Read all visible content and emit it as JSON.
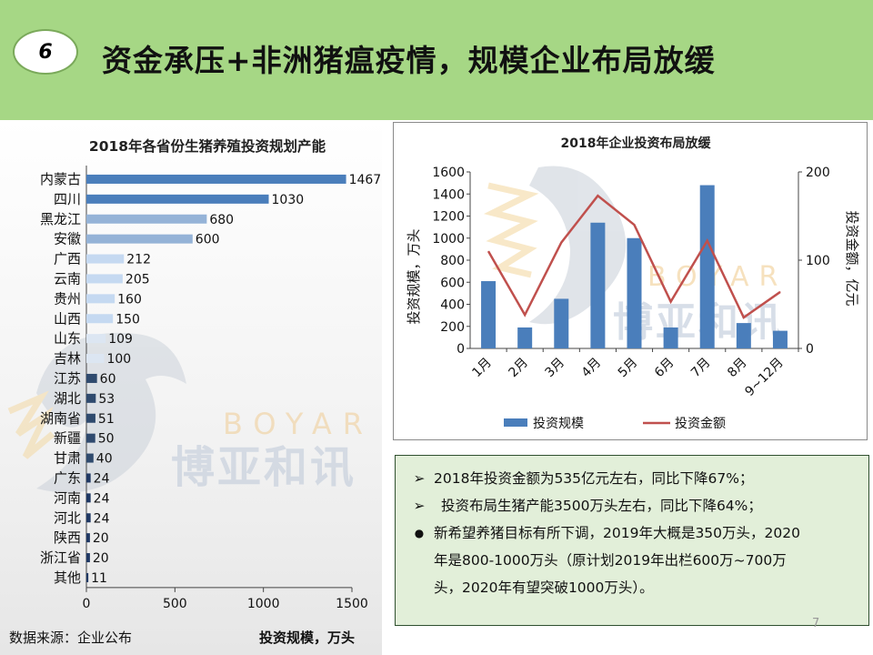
{
  "header": {
    "number": "6",
    "title": "资金承压+非洲猪瘟疫情，规模企业布局放缓"
  },
  "watermark": {
    "en": "BOYAR",
    "cn": "博亚和讯"
  },
  "source": "数据来源：企业公布",
  "unit_label": "投资规模，万头",
  "page_number": "7",
  "notes": [
    {
      "marker": "➢",
      "text": "2018年投资金额为535亿元左右，同比下降67%；"
    },
    {
      "marker": "➢",
      "text": "投资布局生猪产能3500万头左右，同比下降64%；"
    },
    {
      "marker": "●",
      "lines": [
        "新希望养猪目标有所下调，2019年大概是350万头，2020",
        "年是800-1000万头（原计划2019年出栏600万~700万",
        "头，2020年有望突破1000万头）。"
      ]
    }
  ],
  "chart_data": [
    {
      "type": "bar",
      "orientation": "horizontal",
      "title": "2018年各省份生猪养殖投资规划产能",
      "xlabel": "投资规模，万头",
      "xlim": [
        0,
        1500
      ],
      "xticks": [
        0,
        500,
        1000,
        1500
      ],
      "categories": [
        "内蒙古",
        "四川",
        "黑龙江",
        "安徽",
        "广西",
        "云南",
        "贵州",
        "山西",
        "山东",
        "吉林",
        "江苏",
        "湖北",
        "湖南省",
        "新疆",
        "甘肃",
        "广东",
        "河南",
        "河北",
        "陕西",
        "浙江省",
        "其他"
      ],
      "values": [
        1467,
        1030,
        680,
        600,
        212,
        205,
        160,
        150,
        109,
        100,
        60,
        53,
        51,
        50,
        40,
        24,
        24,
        24,
        20,
        20,
        11
      ],
      "colors": [
        "#4a7ebb",
        "#4a7ebb",
        "#95b3d7",
        "#95b3d7",
        "#c5d9f1",
        "#c5d9f1",
        "#c5d9f1",
        "#c5d9f1",
        "#dce6f2",
        "#dce6f2",
        "#2f4a6e",
        "#2f4a6e",
        "#2f4a6e",
        "#2f4a6e",
        "#2f4a6e",
        "#1f3864",
        "#1f3864",
        "#1f3864",
        "#1f3864",
        "#1f3864",
        "#1f3864"
      ]
    },
    {
      "type": "bar+line",
      "title": "2018年企业投资布局放缓",
      "categories": [
        "1月",
        "2月",
        "3月",
        "4月",
        "5月",
        "6月",
        "7月",
        "8月",
        "9~12月"
      ],
      "series": [
        {
          "name": "投资规模",
          "type": "bar",
          "axis": "left",
          "color": "#4a7ebb",
          "values": [
            610,
            190,
            450,
            1140,
            1000,
            190,
            1480,
            230,
            160
          ]
        },
        {
          "name": "投资金额",
          "type": "line",
          "axis": "right",
          "color": "#c0504d",
          "values": [
            110,
            38,
            120,
            173,
            140,
            53,
            122,
            35,
            64
          ]
        }
      ],
      "ylabel_left": "投资规模，万头",
      "ylabel_right": "投资金额，亿元",
      "ylim_left": [
        0,
        1600
      ],
      "yticks_left": [
        0,
        200,
        400,
        600,
        800,
        1000,
        1200,
        1400,
        1600
      ],
      "ylim_right": [
        0,
        200
      ],
      "yticks_right": [
        0,
        100,
        200
      ]
    }
  ]
}
